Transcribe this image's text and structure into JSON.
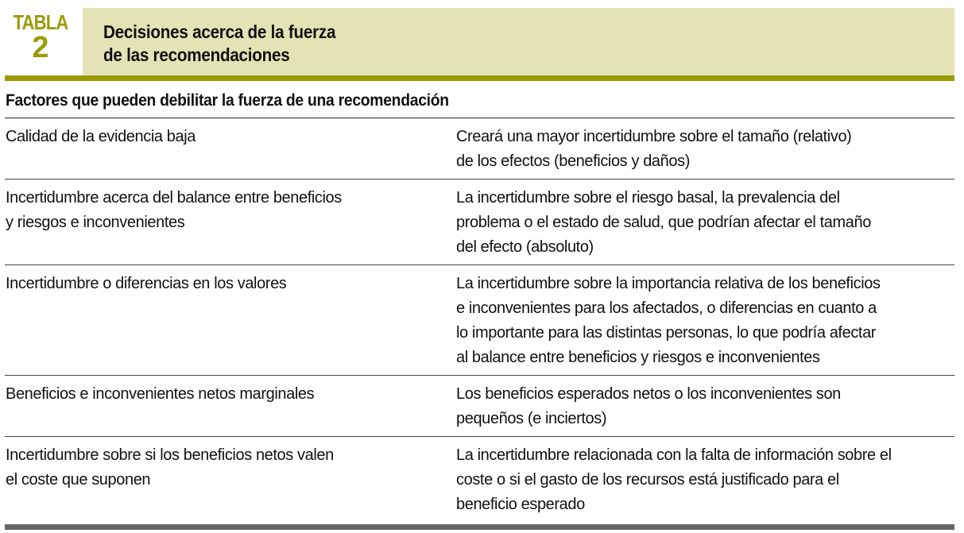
{
  "header": {
    "label": "TABLA",
    "number": "2",
    "title_line1": "Decisiones acerca de la fuerza",
    "title_line2": "de las recomendaciones",
    "colors": {
      "accent": "#9a9a06",
      "header_bg": "#e3e3b5",
      "bottom_bar": "#666666"
    }
  },
  "section_title": "Factores que pueden debilitar la fuerza de una recomendación",
  "rows": [
    {
      "factor": [
        "Calidad de la evidencia baja"
      ],
      "effect": [
        "Creará una mayor incertidumbre sobre el tamaño (relativo)",
        "de los efectos (beneficios y daños)"
      ]
    },
    {
      "factor": [
        "Incertidumbre acerca del balance entre beneficios",
        "y riesgos e inconvenientes"
      ],
      "effect": [
        "La incertidumbre sobre el riesgo basal, la prevalencia del",
        "problema o el estado de salud, que podrían afectar el tamaño",
        "del efecto (absoluto)"
      ]
    },
    {
      "factor": [
        "Incertidumbre o diferencias en los valores"
      ],
      "effect": [
        "La incertidumbre sobre la importancia relativa de los beneficios",
        "e inconvenientes para los afectados, o diferencias en cuanto a",
        "lo importante para las distintas personas, lo que podría afectar",
        "al balance entre beneficios y riesgos e inconvenientes"
      ]
    },
    {
      "factor": [
        "Beneficios e inconvenientes netos marginales"
      ],
      "effect": [
        "Los beneficios esperados netos o los inconvenientes son",
        "pequeños (e inciertos)"
      ]
    },
    {
      "factor": [
        "Incertidumbre sobre si los beneficios netos valen",
        "el coste que suponen"
      ],
      "effect": [
        "La incertidumbre relacionada con la falta de información sobre el",
        "coste o si el gasto de los recursos está justificado para el",
        "beneficio esperado"
      ]
    }
  ]
}
